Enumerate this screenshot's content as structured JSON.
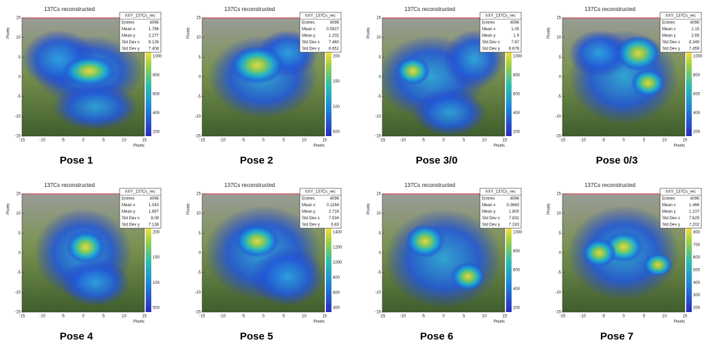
{
  "title": "137Cs reconstructed",
  "stats_name": "hXY_137Cs_rec",
  "stat_labels": [
    "Entries",
    "Mean x",
    "Mean y",
    "Std Dev x",
    "Std Dev y"
  ],
  "axis_label": "Pixels",
  "xticks": [
    -15,
    -10,
    -5,
    0,
    5,
    10,
    15
  ],
  "yticks": [
    -15,
    -10,
    -5,
    0,
    5,
    10,
    15
  ],
  "panels": [
    {
      "caption": "Pose 1",
      "stats": [
        "4096",
        "1.786",
        "2.277",
        "8.126",
        "7.408"
      ],
      "colorbar": [
        "1000",
        "800",
        "600",
        "400",
        "200"
      ]
    },
    {
      "caption": "Pose 2",
      "stats": [
        "4096",
        "0.5927",
        "1.202",
        "7.460",
        "6.651"
      ],
      "colorbar": [
        "200",
        "150",
        "100",
        "500"
      ]
    },
    {
      "caption": "Pose 3/0",
      "stats": [
        "4096",
        "1.05",
        "1.9",
        "7.67",
        "6.676"
      ],
      "colorbar": [
        "1000",
        "800",
        "600",
        "400",
        "200"
      ]
    },
    {
      "caption": "Pose 0/3",
      "stats": [
        "4096",
        "1.15",
        "2.65",
        "8.349",
        "7.459"
      ],
      "colorbar": [
        "1000",
        "800",
        "600",
        "400",
        "200"
      ]
    },
    {
      "caption": "Pose 4",
      "stats": [
        "4096",
        "1.043",
        "1.667",
        "8.08",
        "7.138"
      ],
      "colorbar": [
        "200",
        "150",
        "100",
        "500"
      ]
    },
    {
      "caption": "Pose 5",
      "stats": [
        "4096",
        "0.1164",
        "2.716",
        "7.534",
        "6.83"
      ],
      "colorbar": [
        "1400",
        "1200",
        "1000",
        "800",
        "600",
        "400"
      ]
    },
    {
      "caption": "Pose 6",
      "stats": [
        "4096",
        "0.3660",
        "1.800",
        "7.831",
        "7.243"
      ],
      "colorbar": [
        "1000",
        "800",
        "600",
        "400",
        "200"
      ]
    },
    {
      "caption": "Pose 7",
      "stats": [
        "4096",
        "1.466",
        "1.107",
        "7.629",
        "7.202"
      ],
      "colorbar": [
        "800",
        "700",
        "600",
        "500",
        "400",
        "300",
        "200"
      ]
    }
  ]
}
